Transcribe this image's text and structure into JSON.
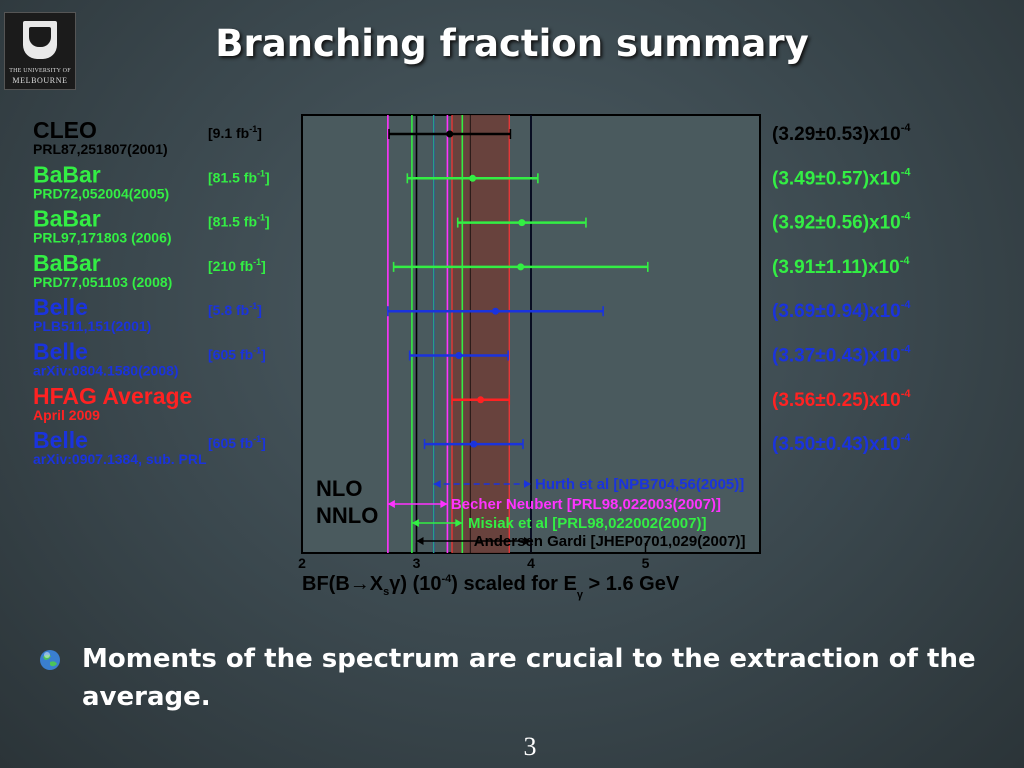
{
  "logo": {
    "line1": "THE UNIVERSITY OF",
    "line2": "MELBOURNE"
  },
  "slide": {
    "title": "Branching fraction summary",
    "bullet": "Moments of the spectrum are crucial to the extraction of the average.",
    "page": "3"
  },
  "chart_data": {
    "type": "scatter",
    "xlabel_parts": {
      "a": "BF(B",
      "arrow": "→",
      "b": "X",
      "b_sub": "s",
      "c": "γ) (10",
      "c_sup": "-4",
      "d": ") scaled for E",
      "d_sub": "γ",
      "e": " > 1.6 GeV"
    },
    "xlim": [
      2,
      6
    ],
    "xticks": [
      2,
      3,
      4,
      5
    ],
    "measurements": [
      {
        "exp": "CLEO",
        "ref": "PRL87,251807(2001)",
        "lumi": "[9.1 fb",
        "lumi_sup": "-1",
        "lumi_end": "]",
        "central": 3.29,
        "err": 0.53,
        "result": "(3.29±0.53)x10",
        "result_sup": "-4",
        "color": "#000000"
      },
      {
        "exp": "BaBar",
        "ref": "PRD72,052004(2005)",
        "lumi": "[81.5 fb",
        "lumi_sup": "-1",
        "lumi_end": "]",
        "central": 3.49,
        "err": 0.57,
        "result": "(3.49±0.57)x10",
        "result_sup": "-4",
        "color": "#33ee44"
      },
      {
        "exp": "BaBar",
        "ref": "PRL97,171803 (2006)",
        "lumi": "[81.5 fb",
        "lumi_sup": "-1",
        "lumi_end": "]",
        "central": 3.92,
        "err": 0.56,
        "result": "(3.92±0.56)x10",
        "result_sup": "-4",
        "color": "#33ee44"
      },
      {
        "exp": "BaBar",
        "ref": "PRD77,051103 (2008)",
        "lumi": "[210 fb",
        "lumi_sup": "-1",
        "lumi_end": "]",
        "central": 3.91,
        "err": 1.11,
        "result": "(3.91±1.11)x10",
        "result_sup": "-4",
        "color": "#33ee44"
      },
      {
        "exp": "Belle",
        "ref": "PLB511,151(2001)",
        "lumi": "[5.8 fb",
        "lumi_sup": "-1",
        "lumi_end": "]",
        "central": 3.69,
        "err": 0.94,
        "result": "(3.69±0.94)x10",
        "result_sup": "-4",
        "color": "#1a33dd"
      },
      {
        "exp": "Belle",
        "ref": "arXiv:0804.1580(2008)",
        "lumi": "[605 fb",
        "lumi_sup": "-1",
        "lumi_end": "]",
        "central": 3.37,
        "err": 0.43,
        "result": "(3.37±0.43)x10",
        "result_sup": "-4",
        "color": "#1a33dd"
      },
      {
        "exp": "HFAG Average",
        "ref": "April 2009",
        "lumi": "",
        "lumi_sup": "",
        "lumi_end": "",
        "central": 3.56,
        "err": 0.25,
        "result": "(3.56±0.25)x10",
        "result_sup": "-4",
        "color": "#ff2222"
      },
      {
        "exp": "Belle",
        "ref": "arXiv:0907.1384, sub. PRL",
        "lumi": "[605 fb",
        "lumi_sup": "-1",
        "lumi_end": "]",
        "central": 3.5,
        "err": 0.43,
        "result": "(3.50±0.43)x10",
        "result_sup": "-4",
        "color": "#1a33dd"
      }
    ],
    "average_band": [
      3.31,
      3.81
    ],
    "order_labels": [
      "NLO",
      "NNLO"
    ],
    "theory": [
      {
        "label": "Hurth et al [NPB704,56(2005)]",
        "low": 3.15,
        "high": 4.0,
        "center": 3.15,
        "color": "#1a33dd"
      },
      {
        "label": "Becher Neubert [PRL98,022003(2007)]",
        "low": 2.75,
        "high": 3.27,
        "center": 3.0,
        "color": "#ff33ff"
      },
      {
        "label": "Misiak et al [PRL98,022002(2007)]",
        "low": 2.96,
        "high": 3.4,
        "center": 3.15,
        "color": "#33ee44"
      },
      {
        "label": "Andersen Gardi [JHEP0701,029(2007)]",
        "low": 3.0,
        "high": 4.0,
        "center": 3.47,
        "color": "#000000"
      }
    ]
  }
}
